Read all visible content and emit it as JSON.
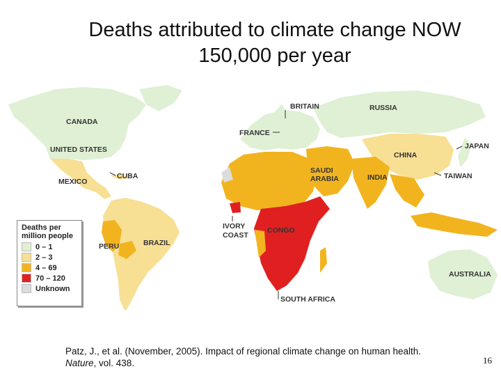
{
  "title": {
    "line1": "Deaths attributed to climate change NOW",
    "line2": "150,000 per year"
  },
  "colors": {
    "ocean": "#ffffff",
    "level_0_1": "#dff0d4",
    "level_2_3": "#f7df94",
    "level_4_69": "#f2b41e",
    "level_70_120": "#e02020",
    "unknown": "#dcdcdc",
    "border": "#ffffff"
  },
  "map": {
    "country_labels": {
      "canada": "CANADA",
      "united_states": "UNITED STATES",
      "mexico": "MEXICO",
      "cuba": "CUBA",
      "peru": "PERU",
      "brazil": "BRAZIL",
      "britain": "BRITAIN",
      "france": "FRANCE",
      "russia": "RUSSIA",
      "china": "CHINA",
      "japan": "JAPAN",
      "taiwan": "TAIWAN",
      "india": "INDIA",
      "saudi_arabia_1": "SAUDI",
      "saudi_arabia_2": "ARABIA",
      "ivory_coast_1": "IVORY",
      "ivory_coast_2": "COAST",
      "congo": "CONGO",
      "south_africa": "SOUTH AFRICA",
      "australia": "AUSTRALIA"
    }
  },
  "legend": {
    "title_line1": "Deaths per",
    "title_line2": "million people",
    "items": [
      {
        "label": "0 – 1",
        "color": "#dff0d4"
      },
      {
        "label": "2 – 3",
        "color": "#f7df94"
      },
      {
        "label": "4 – 69",
        "color": "#f2b41e"
      },
      {
        "label": "70 – 120",
        "color": "#e02020"
      },
      {
        "label": "Unknown",
        "color": "#dcdcdc"
      }
    ]
  },
  "citation": {
    "text": "Patz, J., et al. (November, 2005). Impact of regional climate change on human health.",
    "journal": "Nature",
    "volume": ", vol. 438."
  },
  "page_number": "16"
}
